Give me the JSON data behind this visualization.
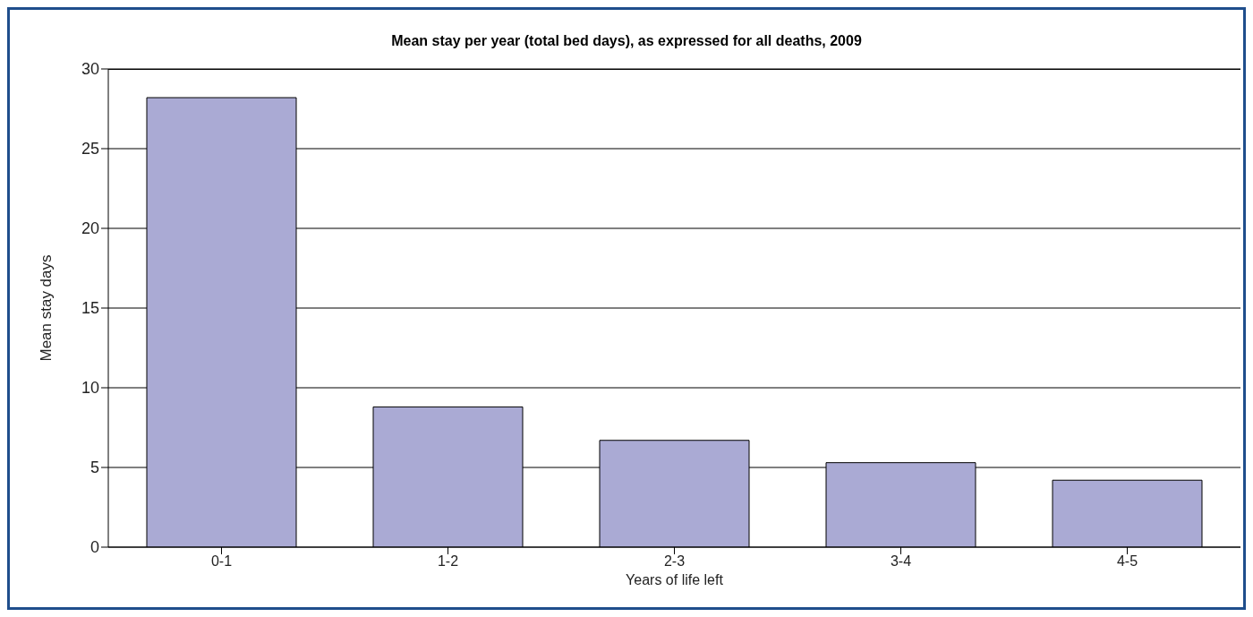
{
  "chart_data": {
    "type": "bar",
    "title": "Mean stay per year (total bed days), as expressed for all deaths, 2009",
    "xlabel": "Years of life left",
    "ylabel": "Mean stay days",
    "categories": [
      "0-1",
      "1-2",
      "2-3",
      "3-4",
      "4-5"
    ],
    "values": [
      28.2,
      8.8,
      6.7,
      5.3,
      4.2
    ],
    "color": "#aaaad4",
    "ylim": [
      0,
      30
    ],
    "yticks": [
      0,
      5,
      10,
      15,
      20,
      25,
      30
    ],
    "grid": "y"
  }
}
